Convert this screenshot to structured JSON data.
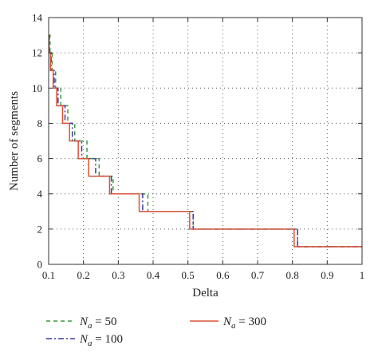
{
  "chart_data": {
    "type": "line",
    "title": "",
    "xlabel": "Delta",
    "ylabel": "Number of segments",
    "xlim": [
      0.1,
      1.0
    ],
    "ylim": [
      0,
      14
    ],
    "xticks": [
      0.1,
      0.2,
      0.3,
      0.4,
      0.5,
      0.6,
      0.7,
      0.8,
      0.9,
      1.0
    ],
    "xtick_labels": [
      "0.1",
      "0.2",
      "0.3",
      "0.4",
      "0.5",
      "0.6",
      "0.7",
      "0.8",
      "0.9",
      "1"
    ],
    "yticks": [
      0,
      2,
      4,
      6,
      8,
      10,
      12,
      14
    ],
    "ytick_labels": [
      "0",
      "2",
      "4",
      "6",
      "8",
      "10",
      "12",
      "14"
    ],
    "grid": true,
    "legend_position": "bottom",
    "series": [
      {
        "name": "N_a = 50",
        "legend_prefix": "N",
        "legend_sub": "a",
        "legend_suffix": " = 50",
        "color": "#3a9a3a",
        "style": "dashed",
        "step": true,
        "x": [
          0.1,
          0.104,
          0.11,
          0.12,
          0.135,
          0.155,
          0.175,
          0.21,
          0.245,
          0.285,
          0.385,
          0.515,
          0.815,
          1.0
        ],
        "y": [
          13,
          12,
          11,
          10,
          9,
          8,
          7,
          6,
          5,
          4,
          3,
          2,
          1,
          1
        ]
      },
      {
        "name": "N_a = 100",
        "legend_prefix": "N",
        "legend_sub": "a",
        "legend_suffix": " = 100",
        "color": "#3a3aa8",
        "style": "dashdot",
        "step": true,
        "x": [
          0.1,
          0.102,
          0.107,
          0.116,
          0.127,
          0.147,
          0.168,
          0.195,
          0.235,
          0.28,
          0.37,
          0.515,
          0.815,
          1.0
        ],
        "y": [
          13,
          12,
          11,
          10,
          9,
          8,
          7,
          6,
          5,
          4,
          3,
          2,
          1,
          1
        ]
      },
      {
        "name": "N_a = 300",
        "legend_prefix": "N",
        "legend_sub": "a",
        "legend_suffix": " = 300",
        "color": "#d9533a",
        "style": "solid",
        "step": true,
        "x": [
          0.1,
          0.101,
          0.105,
          0.113,
          0.123,
          0.14,
          0.16,
          0.185,
          0.215,
          0.275,
          0.36,
          0.505,
          0.805,
          1.0
        ],
        "y": [
          13,
          12,
          11,
          10,
          9,
          8,
          7,
          6,
          5,
          4,
          3,
          2,
          1,
          1
        ]
      }
    ]
  }
}
